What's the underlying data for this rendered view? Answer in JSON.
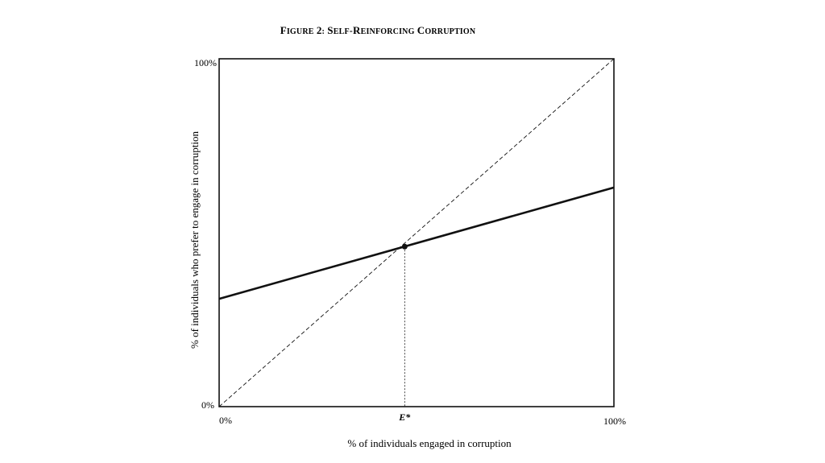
{
  "chart_data": {
    "type": "line",
    "title": "Figure 2: Self-Reinforcing Corruption",
    "xlabel": "% of individuals engaged in corruption",
    "ylabel": "% of individuals who prefer to engage in corruption",
    "xlim": [
      0,
      100
    ],
    "ylim": [
      0,
      100
    ],
    "x_ticks": [
      "0%",
      "E*",
      "100%"
    ],
    "y_ticks": [
      "0%",
      "100%"
    ],
    "grid": false,
    "series": [
      {
        "style": "solid-thick",
        "x": [
          0,
          100
        ],
        "y": [
          31,
          63
        ]
      },
      {
        "style": "dashed",
        "x": [
          0,
          100
        ],
        "y": [
          0,
          100
        ]
      }
    ],
    "equilibrium": {
      "label": "E*",
      "x": 47,
      "y": 46
    }
  }
}
